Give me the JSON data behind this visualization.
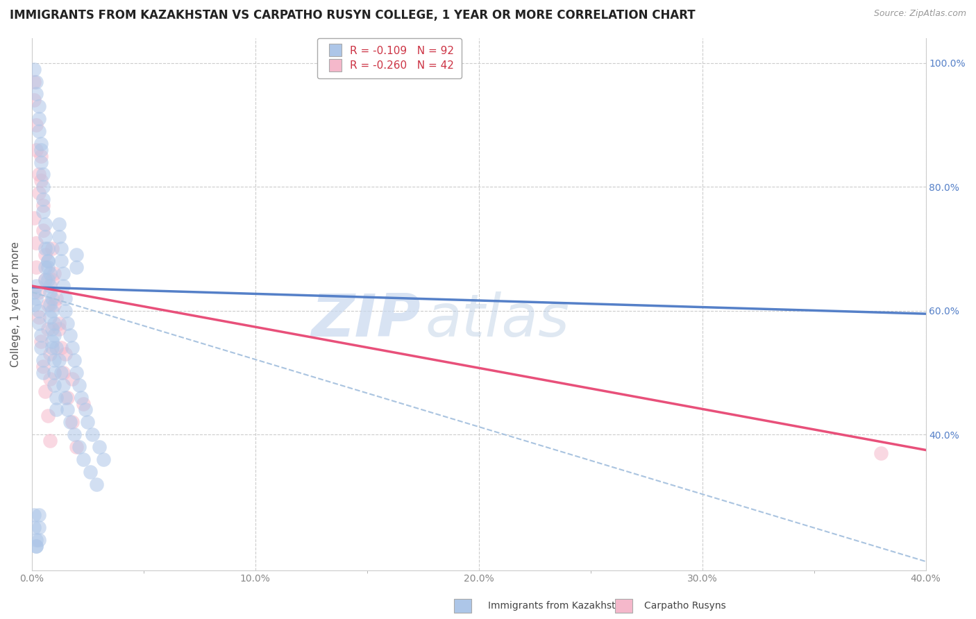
{
  "title": "IMMIGRANTS FROM KAZAKHSTAN VS CARPATHO RUSYN COLLEGE, 1 YEAR OR MORE CORRELATION CHART",
  "source": "Source: ZipAtlas.com",
  "ylabel": "College, 1 year or more",
  "legend_blue_r": "-0.109",
  "legend_blue_n": "92",
  "legend_pink_r": "-0.260",
  "legend_pink_n": "42",
  "legend_blue_label": "Immigrants from Kazakhstan",
  "legend_pink_label": "Carpatho Rusyns",
  "blue_color": "#adc6e8",
  "pink_color": "#f5b8cb",
  "blue_line_color": "#5580c8",
  "pink_line_color": "#e8507a",
  "dash_line_color": "#aac4e0",
  "background_color": "#ffffff",
  "grid_color": "#cccccc",
  "xmin": 0.0,
  "xmax": 0.4,
  "ymin": 0.18,
  "ymax": 1.04,
  "blue_scatter_x": [
    0.001,
    0.002,
    0.002,
    0.003,
    0.003,
    0.003,
    0.004,
    0.004,
    0.004,
    0.005,
    0.005,
    0.005,
    0.005,
    0.006,
    0.006,
    0.006,
    0.007,
    0.007,
    0.007,
    0.008,
    0.008,
    0.008,
    0.009,
    0.009,
    0.009,
    0.01,
    0.01,
    0.01,
    0.011,
    0.011,
    0.012,
    0.012,
    0.013,
    0.013,
    0.014,
    0.014,
    0.015,
    0.015,
    0.016,
    0.017,
    0.018,
    0.019,
    0.02,
    0.021,
    0.022,
    0.024,
    0.025,
    0.027,
    0.03,
    0.032,
    0.001,
    0.001,
    0.002,
    0.002,
    0.003,
    0.003,
    0.004,
    0.004,
    0.005,
    0.005,
    0.006,
    0.006,
    0.007,
    0.007,
    0.008,
    0.008,
    0.009,
    0.009,
    0.01,
    0.01,
    0.011,
    0.012,
    0.013,
    0.014,
    0.015,
    0.016,
    0.017,
    0.019,
    0.021,
    0.023,
    0.026,
    0.029,
    0.001,
    0.001,
    0.002,
    0.002,
    0.002,
    0.003,
    0.003,
    0.003,
    0.02,
    0.02
  ],
  "blue_scatter_y": [
    0.99,
    0.97,
    0.95,
    0.93,
    0.91,
    0.89,
    0.87,
    0.86,
    0.84,
    0.82,
    0.8,
    0.78,
    0.76,
    0.74,
    0.72,
    0.7,
    0.68,
    0.67,
    0.65,
    0.63,
    0.61,
    0.59,
    0.57,
    0.55,
    0.54,
    0.52,
    0.5,
    0.48,
    0.46,
    0.44,
    0.74,
    0.72,
    0.7,
    0.68,
    0.66,
    0.64,
    0.62,
    0.6,
    0.58,
    0.56,
    0.54,
    0.52,
    0.5,
    0.48,
    0.46,
    0.44,
    0.42,
    0.4,
    0.38,
    0.36,
    0.63,
    0.61,
    0.64,
    0.62,
    0.6,
    0.58,
    0.56,
    0.54,
    0.52,
    0.5,
    0.67,
    0.65,
    0.7,
    0.68,
    0.66,
    0.64,
    0.62,
    0.6,
    0.58,
    0.56,
    0.54,
    0.52,
    0.5,
    0.48,
    0.46,
    0.44,
    0.42,
    0.4,
    0.38,
    0.36,
    0.34,
    0.32,
    0.27,
    0.25,
    0.23,
    0.22,
    0.22,
    0.23,
    0.25,
    0.27,
    0.69,
    0.67
  ],
  "pink_scatter_x": [
    0.001,
    0.001,
    0.002,
    0.002,
    0.003,
    0.003,
    0.004,
    0.004,
    0.005,
    0.005,
    0.006,
    0.006,
    0.007,
    0.007,
    0.008,
    0.008,
    0.009,
    0.01,
    0.011,
    0.012,
    0.013,
    0.014,
    0.016,
    0.018,
    0.02,
    0.001,
    0.002,
    0.002,
    0.003,
    0.003,
    0.004,
    0.005,
    0.006,
    0.007,
    0.008,
    0.009,
    0.01,
    0.012,
    0.015,
    0.018,
    0.023,
    0.38
  ],
  "pink_scatter_y": [
    0.97,
    0.94,
    0.9,
    0.86,
    0.82,
    0.79,
    0.85,
    0.81,
    0.77,
    0.73,
    0.69,
    0.65,
    0.61,
    0.57,
    0.53,
    0.49,
    0.7,
    0.66,
    0.62,
    0.58,
    0.54,
    0.5,
    0.46,
    0.42,
    0.38,
    0.75,
    0.71,
    0.67,
    0.63,
    0.59,
    0.55,
    0.51,
    0.47,
    0.43,
    0.39,
    0.65,
    0.61,
    0.57,
    0.53,
    0.49,
    0.45,
    0.37
  ],
  "blue_trendline_x": [
    0.0,
    0.4
  ],
  "blue_trendline_y": [
    0.638,
    0.595
  ],
  "pink_trendline_x": [
    0.0,
    0.4
  ],
  "pink_trendline_y": [
    0.64,
    0.375
  ],
  "dash_trendline_x": [
    0.0,
    0.4
  ],
  "dash_trendline_y": [
    0.63,
    0.195
  ],
  "watermark_zip": "ZIP",
  "watermark_atlas": "atlas"
}
